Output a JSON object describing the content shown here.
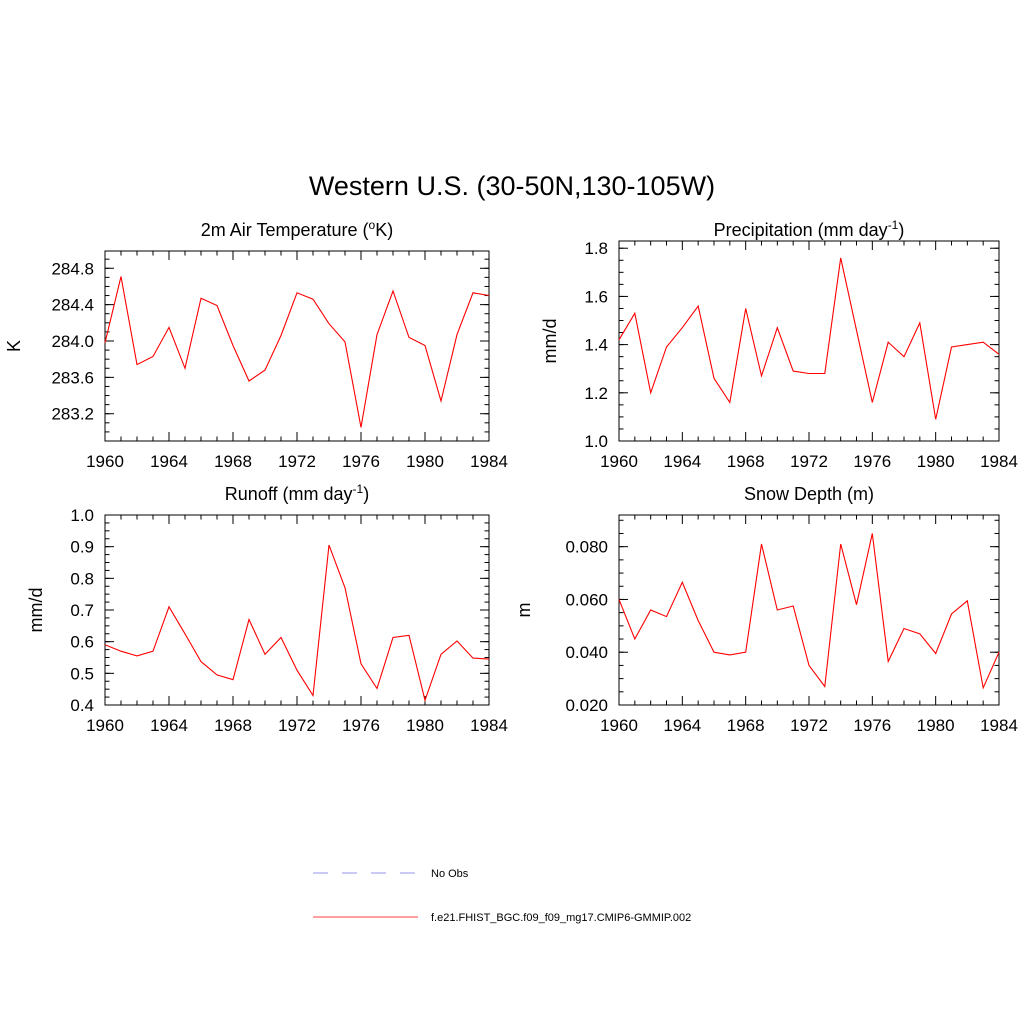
{
  "figure": {
    "title": "Western U.S. (30-50N,130-105W)"
  },
  "legend": {
    "items": [
      {
        "label": "No Obs",
        "color": "#aaaaee",
        "style": "dashed"
      },
      {
        "label": "f.e21.FHIST_BGC.f09_f09_mg17.CMIP6-GMMIP.002",
        "color": "#ff4444",
        "style": "solid"
      }
    ]
  },
  "chart_data": [
    {
      "type": "line",
      "title": "2m Air Temperature (",
      "title_sup": "o",
      "title_after": "K)",
      "ylabel": "K",
      "xlim": [
        1960,
        1984
      ],
      "ylim": [
        282.9,
        284.99
      ],
      "xticks": [
        1960,
        1964,
        1968,
        1972,
        1976,
        1980,
        1984
      ],
      "yticks": [
        283.2,
        283.6,
        284.0,
        284.4,
        284.8
      ],
      "ytick_labels": [
        "283.2",
        "283.6",
        "284.0",
        "284.4",
        "284.8"
      ],
      "yminor": 0.1,
      "color": "#ff0000",
      "x": [
        1960,
        1961,
        1962,
        1963,
        1964,
        1965,
        1966,
        1967,
        1968,
        1969,
        1970,
        1971,
        1972,
        1973,
        1974,
        1975,
        1976,
        1977,
        1978,
        1979,
        1980,
        1981,
        1982,
        1983,
        1984
      ],
      "y": [
        283.98,
        284.71,
        283.74,
        283.83,
        284.15,
        283.7,
        284.47,
        284.39,
        283.95,
        283.56,
        283.68,
        284.06,
        284.53,
        284.46,
        284.19,
        283.99,
        283.05,
        284.07,
        284.55,
        284.04,
        283.95,
        283.34,
        284.07,
        284.53,
        284.5
      ]
    },
    {
      "type": "line",
      "title": "Precipitation (mm day",
      "title_sup": "-1",
      "title_after": ")",
      "ylabel": "mm/d",
      "xlim": [
        1960,
        1984
      ],
      "ylim": [
        1.0,
        1.83
      ],
      "xticks": [
        1960,
        1964,
        1968,
        1972,
        1976,
        1980,
        1984
      ],
      "yticks": [
        1.0,
        1.2,
        1.4,
        1.6,
        1.8
      ],
      "ytick_labels": [
        "1.0",
        "1.2",
        "1.4",
        "1.6",
        "1.8"
      ],
      "yminor": 0.05,
      "color": "#ff0000",
      "x": [
        1960,
        1961,
        1962,
        1963,
        1964,
        1965,
        1966,
        1967,
        1968,
        1969,
        1970,
        1971,
        1972,
        1973,
        1974,
        1975,
        1976,
        1977,
        1978,
        1979,
        1980,
        1981,
        1982,
        1983,
        1984
      ],
      "y": [
        1.42,
        1.53,
        1.2,
        1.39,
        1.47,
        1.56,
        1.26,
        1.16,
        1.55,
        1.27,
        1.47,
        1.29,
        1.28,
        1.28,
        1.76,
        1.46,
        1.16,
        1.41,
        1.35,
        1.49,
        1.09,
        1.39,
        1.4,
        1.41,
        1.36
      ]
    },
    {
      "type": "line",
      "title": "Runoff (mm day",
      "title_sup": "-1",
      "title_after": ")",
      "ylabel": "mm/d",
      "xlim": [
        1960,
        1984
      ],
      "ylim": [
        0.4,
        1.0
      ],
      "xticks": [
        1960,
        1964,
        1968,
        1972,
        1976,
        1980,
        1984
      ],
      "yticks": [
        0.4,
        0.5,
        0.6,
        0.7,
        0.8,
        0.9,
        1.0
      ],
      "ytick_labels": [
        "0.4",
        "0.5",
        "0.6",
        "0.7",
        "0.8",
        "0.9",
        "1.0"
      ],
      "yminor": 0.025,
      "color": "#ff0000",
      "x": [
        1960,
        1961,
        1962,
        1963,
        1964,
        1965,
        1966,
        1967,
        1968,
        1969,
        1970,
        1971,
        1972,
        1973,
        1974,
        1975,
        1976,
        1977,
        1978,
        1979,
        1980,
        1981,
        1982,
        1983,
        1984
      ],
      "y": [
        0.59,
        0.57,
        0.555,
        0.57,
        0.71,
        0.625,
        0.537,
        0.495,
        0.48,
        0.67,
        0.56,
        0.613,
        0.51,
        0.43,
        0.905,
        0.77,
        0.53,
        0.452,
        0.613,
        0.62,
        0.415,
        0.56,
        0.602,
        0.548,
        0.545
      ]
    },
    {
      "type": "line",
      "title": "Snow Depth (m)",
      "title_sup": "",
      "title_after": "",
      "ylabel": "m",
      "xlim": [
        1960,
        1984
      ],
      "ylim": [
        0.02,
        0.092
      ],
      "xticks": [
        1960,
        1964,
        1968,
        1972,
        1976,
        1980,
        1984
      ],
      "yticks": [
        0.02,
        0.04,
        0.06,
        0.08
      ],
      "ytick_labels": [
        "0.020",
        "0.040",
        "0.060",
        "0.080"
      ],
      "yminor": 0.005,
      "color": "#ff0000",
      "x": [
        1960,
        1961,
        1962,
        1963,
        1964,
        1965,
        1966,
        1967,
        1968,
        1969,
        1970,
        1971,
        1972,
        1973,
        1974,
        1975,
        1976,
        1977,
        1978,
        1979,
        1980,
        1981,
        1982,
        1983,
        1984
      ],
      "y": [
        0.06,
        0.045,
        0.056,
        0.0535,
        0.0665,
        0.052,
        0.04,
        0.039,
        0.04,
        0.081,
        0.056,
        0.0575,
        0.035,
        0.027,
        0.081,
        0.058,
        0.085,
        0.0365,
        0.049,
        0.047,
        0.0395,
        0.0545,
        0.0595,
        0.0265,
        0.04
      ]
    }
  ]
}
